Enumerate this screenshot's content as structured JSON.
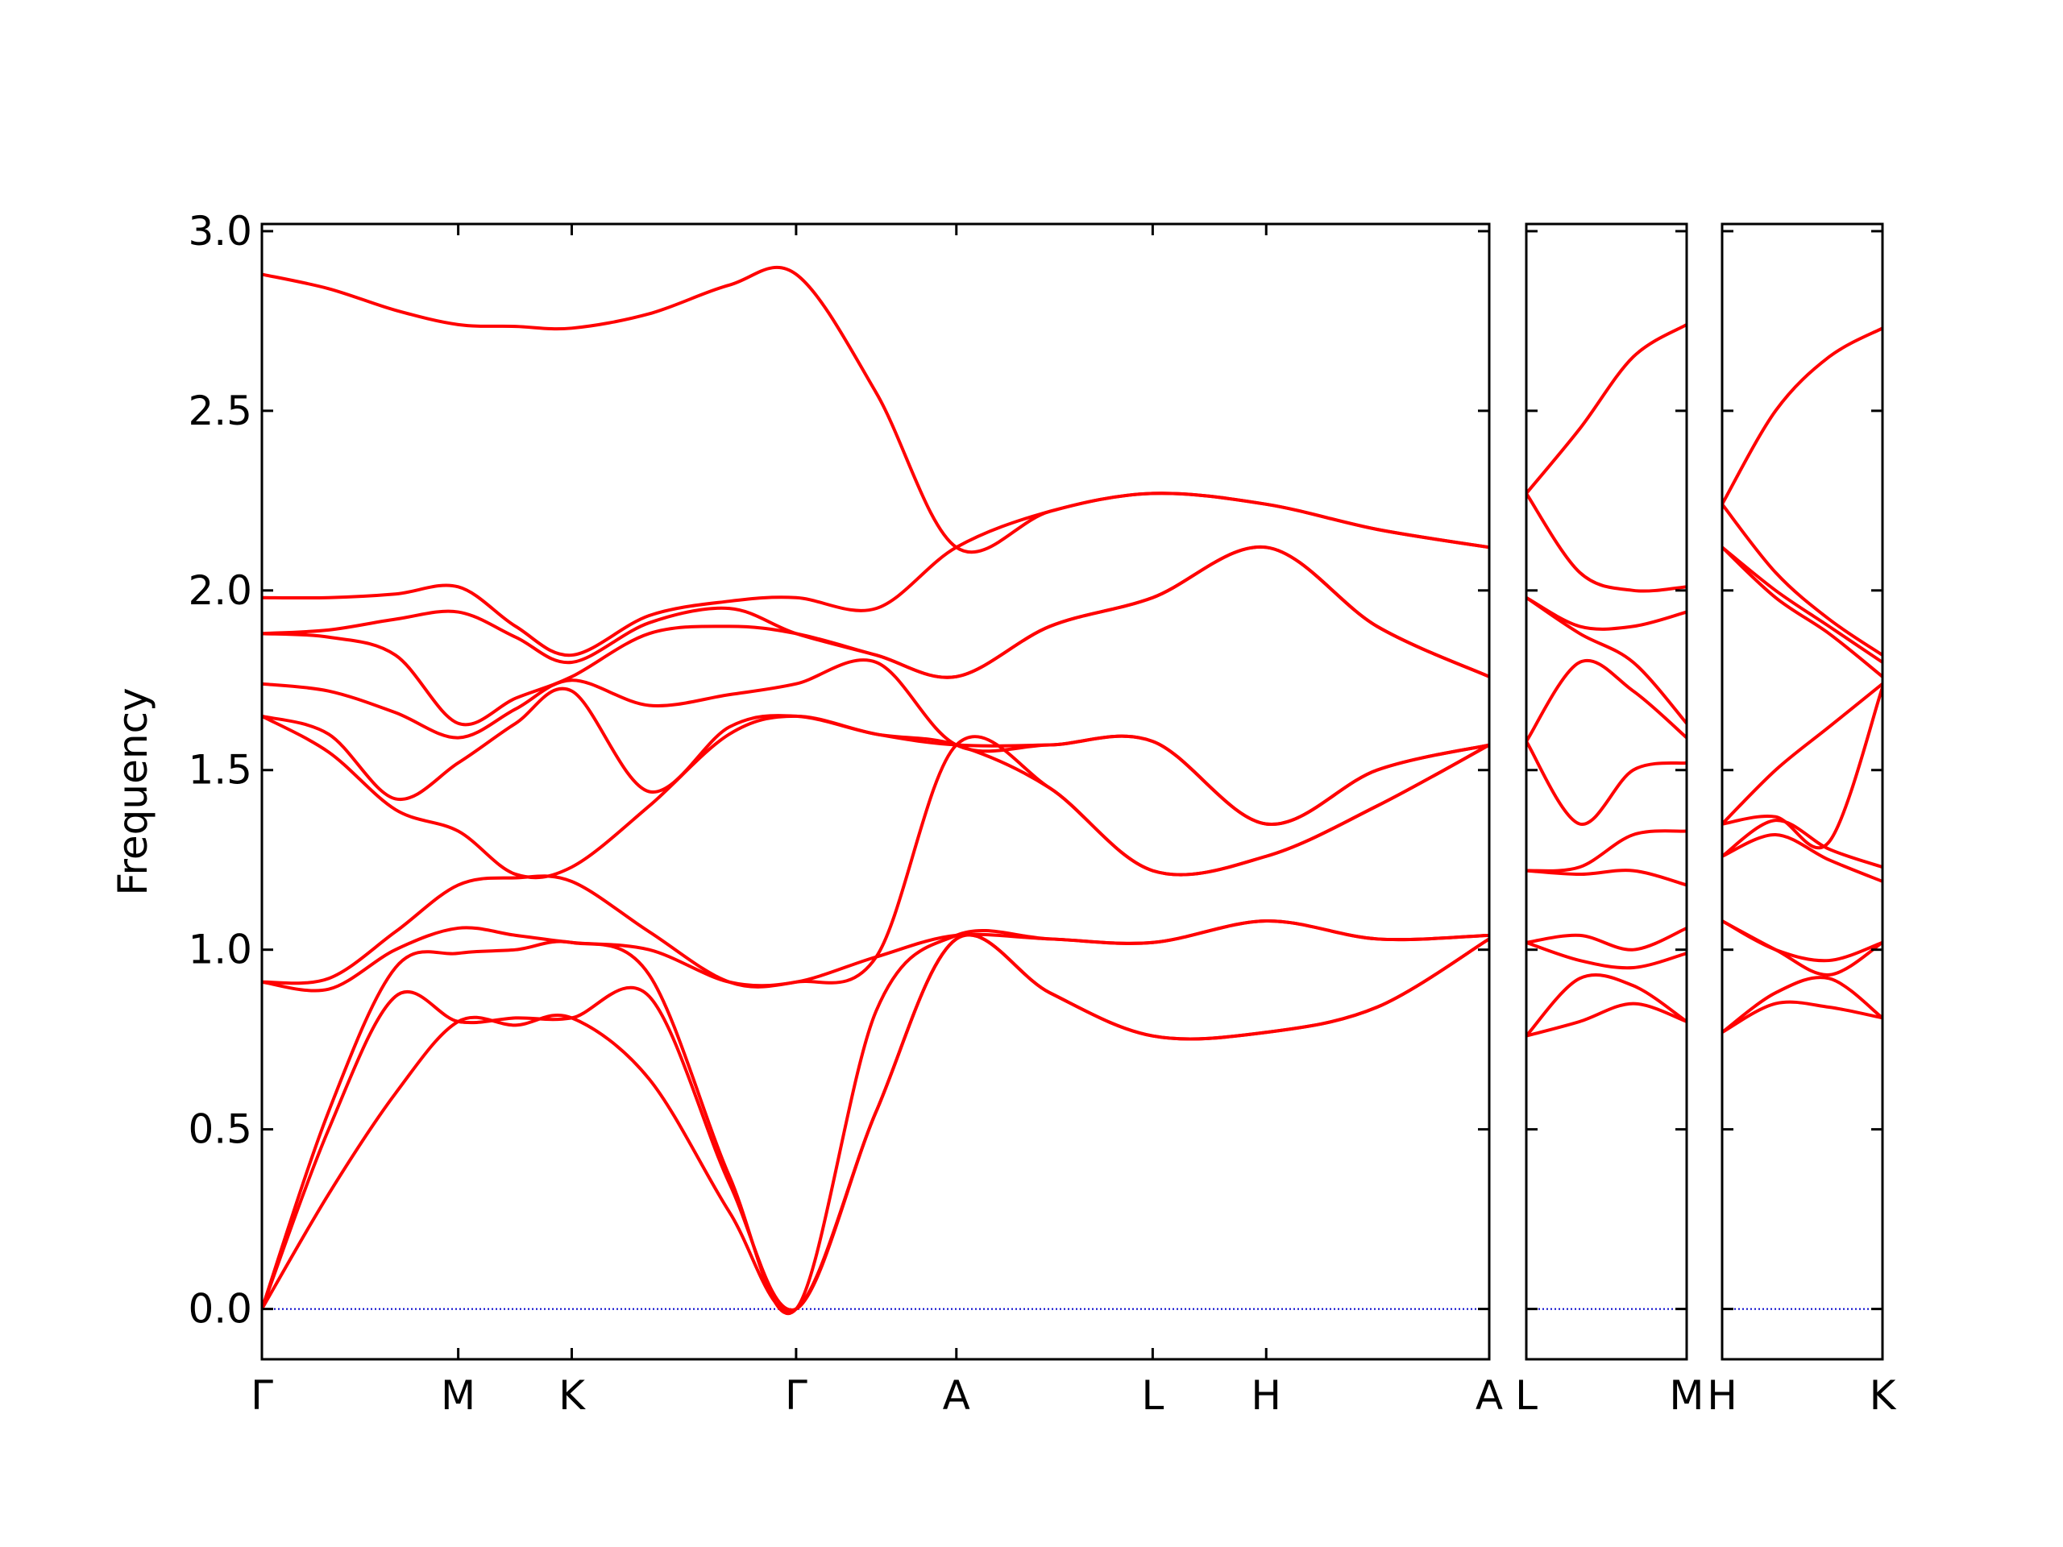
{
  "chart_data": [
    {
      "type": "line",
      "ylabel": "Frequency",
      "show_ytick_labels": true,
      "x": [
        0,
        0.5,
        1.0,
        1.47,
        1.9,
        2.32,
        2.9,
        3.5,
        4.0,
        4.6,
        5.2,
        5.9,
        6.67,
        7.52,
        8.35,
        9.19
      ],
      "xlim": [
        0,
        9.19
      ],
      "ylim": [
        -0.14,
        3.02
      ],
      "xticks": [
        {
          "value": 0,
          "label": "Γ"
        },
        {
          "value": 1.47,
          "label": "M"
        },
        {
          "value": 2.32,
          "label": "K"
        },
        {
          "value": 4.0,
          "label": "Γ"
        },
        {
          "value": 5.2,
          "label": "A"
        },
        {
          "value": 6.67,
          "label": "L"
        },
        {
          "value": 7.52,
          "label": "H"
        },
        {
          "value": 9.19,
          "label": "A"
        }
      ],
      "yticks": [
        {
          "value": 0,
          "label": "0.0"
        },
        0.5,
        {
          "value": 1,
          "label": "1.0"
        },
        1.5,
        {
          "value": 2,
          "label": "2.0"
        },
        2.5,
        {
          "value": 3,
          "label": "3.0"
        }
      ],
      "reference_line": {
        "value": 0,
        "color": "#0000cc"
      },
      "series": [
        {
          "color": "#ff0000",
          "values": [
            0,
            0.32,
            0.6,
            0.8,
            0.79,
            0.81,
            0.64,
            0.27,
            0,
            0.55,
            1.03,
            0.88,
            0.76,
            0.77,
            0.84,
            1.03
          ]
        },
        {
          "color": "#ff0000",
          "values": [
            0,
            0.5,
            0.87,
            0.8,
            0.81,
            0.81,
            0.87,
            0.35,
            0,
            0.55,
            1.03,
            0.88,
            0.76,
            0.77,
            0.84,
            1.03
          ]
        },
        {
          "color": "#ff0000",
          "values": [
            0,
            0.55,
            0.95,
            0.99,
            1.0,
            1.02,
            0.93,
            0.37,
            0,
            0.83,
            1.04,
            1.03,
            1.02,
            1.08,
            1.03,
            1.04
          ]
        },
        {
          "color": "#ff0000",
          "values": [
            0.91,
            0.89,
            1.0,
            1.06,
            1.04,
            1.02,
            1.0,
            0.91,
            0.91,
            0.98,
            1.04,
            1.03,
            1.02,
            1.08,
            1.03,
            1.04
          ]
        },
        {
          "color": "#ff0000",
          "values": [
            0.91,
            0.92,
            1.05,
            1.18,
            1.2,
            1.19,
            1.05,
            0.91,
            0.91,
            0.98,
            1.57,
            1.45,
            1.22,
            1.26,
            1.4,
            1.57
          ]
        },
        {
          "color": "#ff0000",
          "values": [
            1.65,
            1.55,
            1.39,
            1.33,
            1.21,
            1.23,
            1.4,
            1.6,
            1.65,
            1.6,
            1.57,
            1.45,
            1.22,
            1.26,
            1.4,
            1.57
          ]
        },
        {
          "color": "#ff0000",
          "values": [
            1.65,
            1.6,
            1.42,
            1.52,
            1.63,
            1.72,
            1.44,
            1.62,
            1.65,
            1.6,
            1.57,
            1.57,
            1.58,
            1.35,
            1.5,
            1.57
          ]
        },
        {
          "color": "#ff0000",
          "values": [
            1.74,
            1.72,
            1.66,
            1.59,
            1.67,
            1.75,
            1.68,
            1.71,
            1.74,
            1.8,
            1.57,
            1.57,
            1.58,
            1.35,
            1.5,
            1.57
          ]
        },
        {
          "color": "#ff0000",
          "values": [
            1.88,
            1.87,
            1.82,
            1.63,
            1.7,
            1.76,
            1.88,
            1.9,
            1.88,
            1.82,
            1.76,
            1.9,
            1.98,
            2.12,
            1.9,
            1.76
          ]
        },
        {
          "color": "#ff0000",
          "values": [
            1.88,
            1.89,
            1.92,
            1.94,
            1.87,
            1.8,
            1.91,
            1.95,
            1.88,
            1.82,
            1.76,
            1.9,
            1.98,
            2.12,
            1.9,
            1.76
          ]
        },
        {
          "color": "#ff0000",
          "values": [
            1.98,
            1.98,
            1.99,
            2.01,
            1.9,
            1.82,
            1.93,
            1.97,
            1.98,
            1.95,
            2.12,
            2.22,
            2.27,
            2.24,
            2.17,
            2.12
          ]
        },
        {
          "color": "#ff0000",
          "values": [
            2.88,
            2.84,
            2.78,
            2.74,
            2.735,
            2.73,
            2.77,
            2.85,
            2.88,
            2.55,
            2.12,
            2.22,
            2.27,
            2.24,
            2.17,
            2.12
          ]
        }
      ]
    },
    {
      "type": "line",
      "show_ytick_labels": false,
      "x": [
        0,
        0.4,
        0.8,
        1.2
      ],
      "xlim": [
        0,
        1.2
      ],
      "ylim": [
        -0.14,
        3.02
      ],
      "xticks": [
        {
          "value": 0,
          "label": "L"
        },
        {
          "value": 1.2,
          "label": "M"
        }
      ],
      "yticks": [
        0,
        0.5,
        1,
        1.5,
        2,
        2.5,
        3
      ],
      "reference_line": {
        "value": 0,
        "color": "#0000cc"
      },
      "series": [
        {
          "color": "#ff0000",
          "values": [
            0.76,
            0.8,
            0.85,
            0.8
          ]
        },
        {
          "color": "#ff0000",
          "values": [
            0.76,
            0.92,
            0.9,
            0.8
          ]
        },
        {
          "color": "#ff0000",
          "values": [
            1.02,
            0.97,
            0.95,
            0.99
          ]
        },
        {
          "color": "#ff0000",
          "values": [
            1.02,
            1.04,
            1.0,
            1.06
          ]
        },
        {
          "color": "#ff0000",
          "values": [
            1.22,
            1.21,
            1.22,
            1.18
          ]
        },
        {
          "color": "#ff0000",
          "values": [
            1.22,
            1.23,
            1.32,
            1.33
          ]
        },
        {
          "color": "#ff0000",
          "values": [
            1.58,
            1.35,
            1.5,
            1.52
          ]
        },
        {
          "color": "#ff0000",
          "values": [
            1.58,
            1.8,
            1.72,
            1.59
          ]
        },
        {
          "color": "#ff0000",
          "values": [
            1.98,
            1.88,
            1.8,
            1.63
          ]
        },
        {
          "color": "#ff0000",
          "values": [
            1.98,
            1.9,
            1.9,
            1.94
          ]
        },
        {
          "color": "#ff0000",
          "values": [
            2.27,
            2.05,
            2.0,
            2.01
          ]
        },
        {
          "color": "#ff0000",
          "values": [
            2.27,
            2.45,
            2.65,
            2.74
          ]
        }
      ]
    },
    {
      "type": "line",
      "show_ytick_labels": false,
      "x": [
        0,
        0.4,
        0.8,
        1.2
      ],
      "xlim": [
        0,
        1.2
      ],
      "ylim": [
        -0.14,
        3.02
      ],
      "xticks": [
        {
          "value": 0,
          "label": "H"
        },
        {
          "value": 1.2,
          "label": "K"
        }
      ],
      "yticks": [
        0,
        0.5,
        1,
        1.5,
        2,
        2.5,
        3
      ],
      "reference_line": {
        "value": 0,
        "color": "#0000cc"
      },
      "series": [
        {
          "color": "#ff0000",
          "values": [
            0.77,
            0.85,
            0.84,
            0.81
          ]
        },
        {
          "color": "#ff0000",
          "values": [
            0.77,
            0.88,
            0.92,
            0.81
          ]
        },
        {
          "color": "#ff0000",
          "values": [
            1.08,
            1.0,
            0.93,
            1.02
          ]
        },
        {
          "color": "#ff0000",
          "values": [
            1.08,
            1.0,
            0.97,
            1.02
          ]
        },
        {
          "color": "#ff0000",
          "values": [
            1.26,
            1.32,
            1.25,
            1.19
          ]
        },
        {
          "color": "#ff0000",
          "values": [
            1.26,
            1.36,
            1.28,
            1.23
          ]
        },
        {
          "color": "#ff0000",
          "values": [
            1.35,
            1.37,
            1.3,
            1.73
          ]
        },
        {
          "color": "#ff0000",
          "values": [
            1.35,
            1.5,
            1.62,
            1.74
          ]
        },
        {
          "color": "#ff0000",
          "values": [
            2.12,
            1.98,
            1.88,
            1.76
          ]
        },
        {
          "color": "#ff0000",
          "values": [
            2.12,
            2.0,
            1.9,
            1.8
          ]
        },
        {
          "color": "#ff0000",
          "values": [
            2.24,
            2.05,
            1.92,
            1.82
          ]
        },
        {
          "color": "#ff0000",
          "values": [
            2.24,
            2.5,
            2.65,
            2.73
          ]
        }
      ]
    }
  ]
}
